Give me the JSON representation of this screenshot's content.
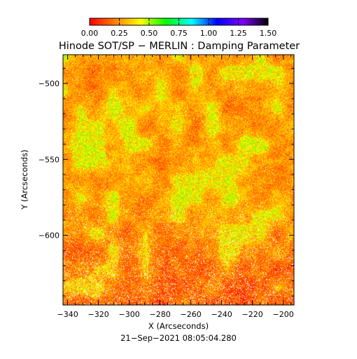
{
  "chart_data": {
    "type": "heatmap",
    "title": "Hinode SOT/SP − MERLIN : Damping Parameter",
    "xlabel": "X (Arcseconds)",
    "ylabel": "Y (Arcseconds)",
    "footer": "21−Sep−2021 08:05:04.280",
    "xlim": [
      -343,
      -193
    ],
    "ylim": [
      -646,
      -481
    ],
    "x_ticks": [
      -340,
      -320,
      -300,
      -280,
      -260,
      -240,
      -220,
      -200
    ],
    "x_tick_labels": [
      "−340",
      "−320",
      "−300",
      "−280",
      "−260",
      "−240",
      "−220",
      "−200"
    ],
    "y_ticks": [
      -500,
      -550,
      -600
    ],
    "y_tick_labels": [
      "−500",
      "−550",
      "−600"
    ],
    "colorbar": {
      "min": 0.0,
      "max": 1.5,
      "ticks": [
        0.0,
        0.25,
        0.5,
        0.75,
        1.0,
        1.25,
        1.5
      ],
      "tick_labels": [
        "0.00",
        "0.25",
        "0.50",
        "0.75",
        "1.00",
        "1.25",
        "1.50"
      ],
      "colormap": [
        "#ff0000",
        "#ff7f00",
        "#ffff00",
        "#00ff00",
        "#00ffff",
        "#0000ff",
        "#7f00ff",
        "#000000"
      ]
    },
    "field": {
      "typical_range": [
        0.0,
        0.6
      ],
      "background_color": "#ff6a1e",
      "enhanced_color": "#c8d21e",
      "no_data_color": "#ffffff"
    }
  }
}
